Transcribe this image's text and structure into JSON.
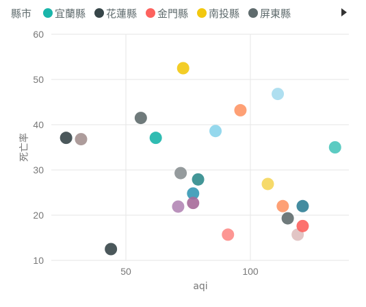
{
  "legend": {
    "title": "縣市",
    "items": [
      {
        "label": "宜蘭縣",
        "color": "#1ab5aa"
      },
      {
        "label": "花蓮縣",
        "color": "#374649"
      },
      {
        "label": "金門縣",
        "color": "#fd625e"
      },
      {
        "label": "南投縣",
        "color": "#f2c80f"
      },
      {
        "label": "屏東縣",
        "color": "#5f6b6d"
      }
    ],
    "more_icon": "play-triangle-icon"
  },
  "chart_data": {
    "type": "scatter",
    "xlabel": "aqi",
    "ylabel": "死亡率",
    "xlim": [
      20,
      138
    ],
    "ylim": [
      10,
      60
    ],
    "x_ticks": [
      50,
      100
    ],
    "y_ticks": [
      10,
      20,
      30,
      40,
      50,
      60
    ],
    "grid": true,
    "legend_position": "top",
    "points": [
      {
        "x": 26,
        "y": 37.1,
        "color": "#374649"
      },
      {
        "x": 32,
        "y": 36.8,
        "color": "#a49190"
      },
      {
        "x": 44,
        "y": 12.5,
        "color": "#374649"
      },
      {
        "x": 56,
        "y": 41.5,
        "color": "#5f6b6d"
      },
      {
        "x": 62,
        "y": 37.1,
        "color": "#1ab5aa"
      },
      {
        "x": 71,
        "y": 21.9,
        "color": "#b386b5"
      },
      {
        "x": 72,
        "y": 29.3,
        "color": "#8a9092"
      },
      {
        "x": 73,
        "y": 52.5,
        "color": "#f2c80f"
      },
      {
        "x": 77,
        "y": 24.8,
        "color": "#3598b5"
      },
      {
        "x": 77,
        "y": 22.7,
        "color": "#a66999"
      },
      {
        "x": 79,
        "y": 27.9,
        "color": "#2f8b8c"
      },
      {
        "x": 86,
        "y": 38.6,
        "color": "#8ad4eb"
      },
      {
        "x": 91,
        "y": 15.7,
        "color": "#fd8b87"
      },
      {
        "x": 96,
        "y": 43.2,
        "color": "#fe9666"
      },
      {
        "x": 107,
        "y": 26.9,
        "color": "#f5d65a"
      },
      {
        "x": 111,
        "y": 46.8,
        "color": "#a6dcee"
      },
      {
        "x": 113,
        "y": 22.0,
        "color": "#fe9666"
      },
      {
        "x": 115,
        "y": 19.3,
        "color": "#5f6b6d"
      },
      {
        "x": 119,
        "y": 15.7,
        "color": "#dfbfbf"
      },
      {
        "x": 121,
        "y": 22.0,
        "color": "#307f96"
      },
      {
        "x": 121,
        "y": 17.6,
        "color": "#fd625e"
      },
      {
        "x": 134,
        "y": 35.0,
        "color": "#4ac5bb"
      }
    ]
  }
}
